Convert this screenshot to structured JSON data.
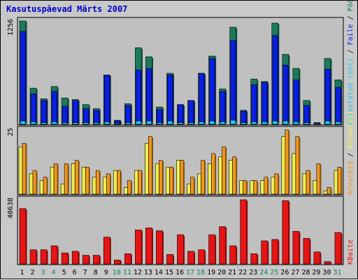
{
  "chart_data": [
    {
      "type": "bar",
      "title": "Kasutuspäevad Märts 2007",
      "categories": [
        "1",
        "2",
        "3",
        "4",
        "5",
        "6",
        "7",
        "8",
        "9",
        "10",
        "11",
        "12",
        "13",
        "14",
        "15",
        "16",
        "17",
        "18",
        "19",
        "20",
        "21",
        "22",
        "23",
        "24",
        "25",
        "26",
        "27",
        "28",
        "29",
        "30",
        "31"
      ],
      "weekend_days": [
        "3",
        "4",
        "10",
        "11",
        "17",
        "18",
        "24",
        "25",
        "31"
      ],
      "ymax_label": "1256",
      "series": [
        {
          "name": "Pöördumisi",
          "color": "#1a7a5a",
          "values": [
            1256,
            440,
            310,
            460,
            320,
            300,
            240,
            190,
            600,
            50,
            250,
            930,
            820,
            210,
            620,
            240,
            290,
            620,
            830,
            430,
            1180,
            170,
            550,
            520,
            1230,
            850,
            680,
            290,
            20,
            800,
            540
          ]
        },
        {
          "name": "Faile",
          "color": "#0a1ee6",
          "values": [
            1130,
            370,
            290,
            400,
            220,
            290,
            190,
            170,
            600,
            40,
            230,
            660,
            680,
            180,
            600,
            240,
            290,
            620,
            800,
            400,
            1020,
            160,
            480,
            510,
            1080,
            720,
            540,
            230,
            20,
            670,
            450
          ]
        },
        {
          "name": "Külastatud lehti",
          "color": "#28c8e6",
          "values": [
            40,
            30,
            20,
            30,
            20,
            20,
            20,
            20,
            30,
            10,
            20,
            40,
            40,
            20,
            40,
            20,
            20,
            30,
            40,
            30,
            50,
            20,
            30,
            30,
            40,
            40,
            30,
            20,
            10,
            40,
            30
          ]
        }
      ]
    },
    {
      "type": "bar",
      "categories": [
        "1",
        "2",
        "3",
        "4",
        "5",
        "6",
        "7",
        "8",
        "9",
        "10",
        "11",
        "12",
        "13",
        "14",
        "15",
        "16",
        "17",
        "18",
        "19",
        "20",
        "21",
        "22",
        "23",
        "24",
        "25",
        "26",
        "27",
        "28",
        "29",
        "30",
        "31"
      ],
      "ymax_label": "25",
      "series": [
        {
          "name": "Külastusi",
          "color": "#f0f050",
          "values": [
            14,
            6,
            4,
            8,
            3,
            9,
            8,
            5,
            5,
            7,
            2,
            7,
            15,
            9,
            8,
            10,
            3,
            6,
            9,
            11,
            10,
            4,
            4,
            4,
            5,
            17,
            12,
            6,
            4,
            1,
            7
          ]
        },
        {
          "name": "Arvuteid",
          "color": "#f0961e",
          "values": [
            15,
            7,
            5,
            9,
            9,
            10,
            8,
            7,
            6,
            7,
            4,
            7,
            17,
            10,
            8,
            10,
            5,
            10,
            12,
            14,
            11,
            4,
            4,
            5,
            6,
            19,
            17,
            7,
            9,
            2,
            8
          ]
        }
      ]
    },
    {
      "type": "bar",
      "categories": [
        "1",
        "2",
        "3",
        "4",
        "5",
        "6",
        "7",
        "8",
        "9",
        "10",
        "11",
        "12",
        "13",
        "14",
        "15",
        "16",
        "17",
        "18",
        "19",
        "20",
        "21",
        "22",
        "23",
        "24",
        "25",
        "26",
        "27",
        "28",
        "29",
        "30",
        "31"
      ],
      "ymax_label": "40638",
      "series": [
        {
          "name": "KBaite",
          "color": "#e61414",
          "values": [
            35000,
            9000,
            9000,
            11500,
            7000,
            8000,
            5500,
            5500,
            17000,
            2500,
            6500,
            21500,
            22800,
            21000,
            6000,
            18500,
            8000,
            9000,
            18500,
            23600,
            11500,
            40638,
            6500,
            14600,
            15500,
            40000,
            20600,
            16200,
            7600,
            1500,
            19900
          ]
        }
      ]
    }
  ]
}
